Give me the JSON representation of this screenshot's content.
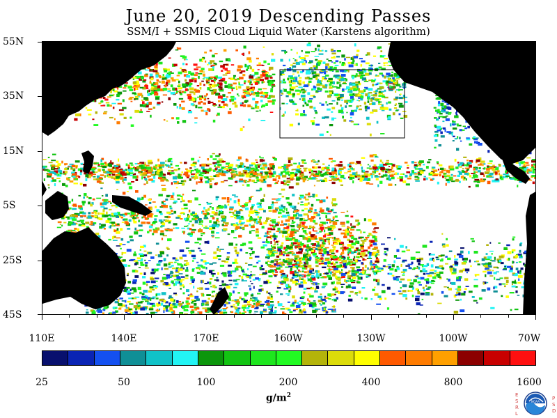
{
  "title": "June 20, 2019  Descending Passes",
  "subtitle": "SSM/I + SSMIS Cloud Liquid Water (Karstens algorithm)",
  "map": {
    "latitude_labels": [
      "55N",
      "35N",
      "15N",
      "5S",
      "25S",
      "45S"
    ],
    "longitude_labels": [
      "110E",
      "140E",
      "170E",
      "160W",
      "130W",
      "100W",
      "70W"
    ],
    "land_color": "#000000",
    "no_data_color": "#ffffff"
  },
  "colorbar": {
    "colors": [
      "#08106e",
      "#0a24b4",
      "#1450f0",
      "#0f8f96",
      "#10c2c8",
      "#22f4f4",
      "#0b960b",
      "#12c412",
      "#1ee61e",
      "#22fa22",
      "#b4b40a",
      "#dcdc0a",
      "#ffff00",
      "#ff5a00",
      "#ff7c00",
      "#ffa000",
      "#8c0000",
      "#c80000",
      "#ff1010"
    ],
    "tick_labels": [
      "25",
      "50",
      "100",
      "200",
      "400",
      "800",
      "1600"
    ],
    "units_base": "g/m",
    "units_exp": "2"
  },
  "logo": {
    "left_text": "ESRL",
    "right_text": "PSD",
    "center_text": "NOAA"
  }
}
